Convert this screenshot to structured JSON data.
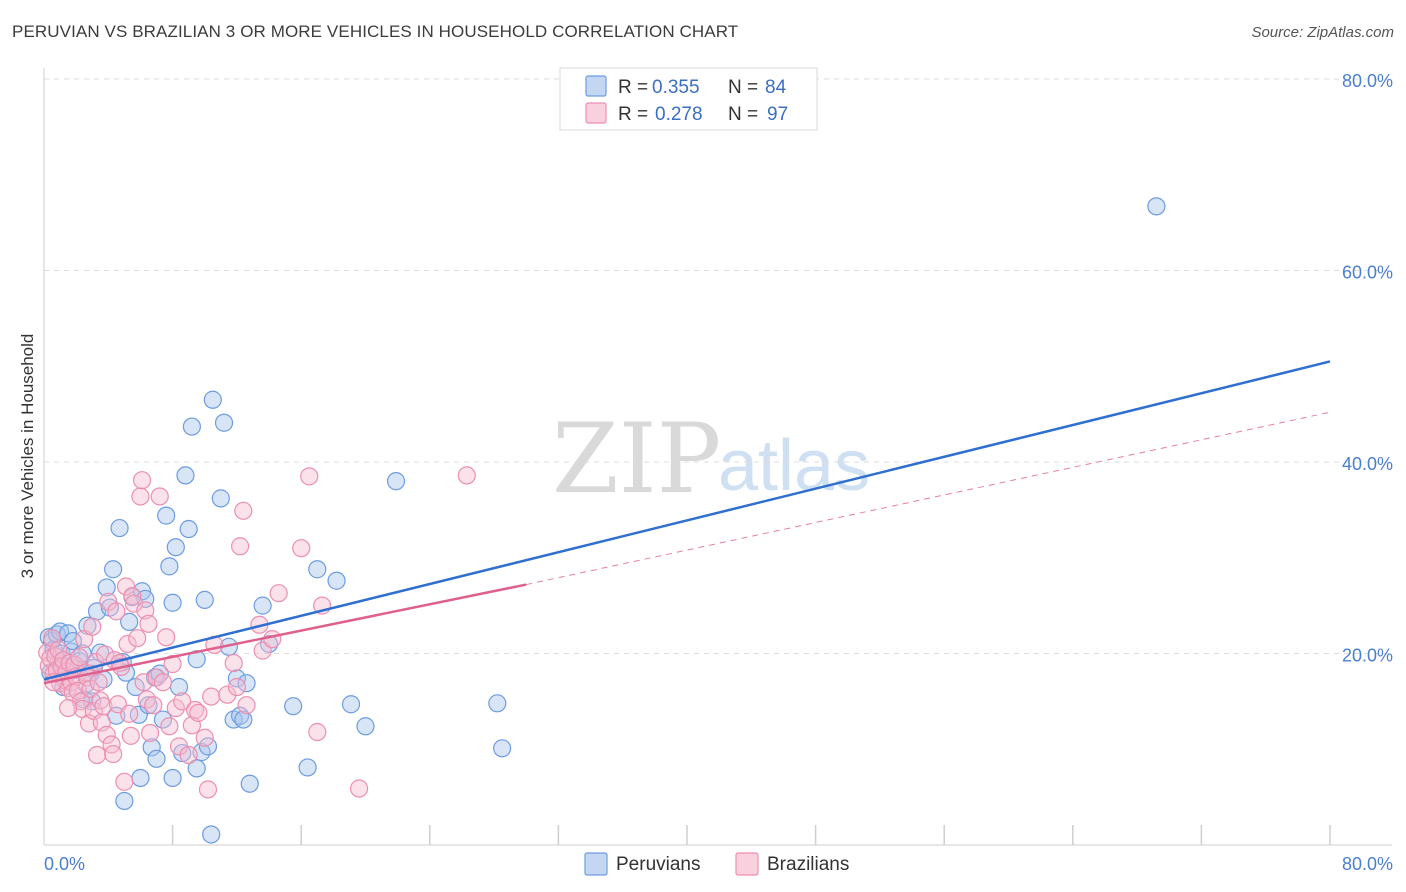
{
  "header": {
    "title": "PERUVIAN VS BRAZILIAN 3 OR MORE VEHICLES IN HOUSEHOLD CORRELATION CHART",
    "source": "Source: ZipAtlas.com"
  },
  "watermark": {
    "zip": "ZIP",
    "atlas": "atlas"
  },
  "legend": {
    "r_label": "R =",
    "n_label": "N =",
    "rows": [
      {
        "r": "0.355",
        "n": "84",
        "color": "#7ba7e0"
      },
      {
        "r": "0.278",
        "n": "97",
        "color": "#f0a3bd"
      }
    ]
  },
  "colors": {
    "peruvians_fill": "#a9c6ee",
    "peruvians_stroke": "#6d9ce0",
    "peruvians_line": "#2f6fd0",
    "brazilians_fill": "#f6bdd0",
    "brazilians_stroke": "#ec8fb0",
    "brazilians_line": "#e0608c"
  },
  "chart_data": {
    "type": "scatter",
    "title": "PERUVIAN VS BRAZILIAN 3 OR MORE VEHICLES IN HOUSEHOLD CORRELATION CHART",
    "xlabel": "",
    "ylabel": "3 or more Vehicles in Household",
    "xlim": [
      0,
      80
    ],
    "ylim": [
      0,
      80
    ],
    "x_tick_labels": [
      "0.0%",
      "80.0%"
    ],
    "y_ticks": [
      20,
      40,
      60,
      80
    ],
    "y_tick_labels": [
      "20.0%",
      "40.0%",
      "60.0%",
      "80.0%"
    ],
    "grid": true,
    "legend_position": "top-center",
    "series": [
      {
        "name": "Peruvians",
        "r": 0.355,
        "n": 84,
        "trend": {
          "x": [
            0,
            80
          ],
          "y": [
            17.3,
            50.5
          ]
        },
        "points": [
          [
            0.3,
            21.7
          ],
          [
            0.5,
            21.3
          ],
          [
            0.6,
            20.4
          ],
          [
            0.8,
            22.0
          ],
          [
            0.9,
            19.1
          ],
          [
            1.0,
            22.3
          ],
          [
            1.1,
            20.0
          ],
          [
            1.3,
            17.6
          ],
          [
            1.5,
            22.1
          ],
          [
            1.7,
            20.2
          ],
          [
            1.8,
            21.3
          ],
          [
            2.0,
            18.3
          ],
          [
            2.2,
            19.2
          ],
          [
            2.4,
            20.0
          ],
          [
            2.5,
            15.2
          ],
          [
            2.7,
            22.9
          ],
          [
            2.9,
            17.9
          ],
          [
            3.1,
            18.5
          ],
          [
            3.3,
            24.4
          ],
          [
            3.5,
            20.1
          ],
          [
            3.7,
            17.3
          ],
          [
            3.9,
            26.9
          ],
          [
            4.1,
            24.8
          ],
          [
            4.3,
            28.8
          ],
          [
            4.5,
            13.5
          ],
          [
            4.7,
            33.1
          ],
          [
            4.9,
            19.1
          ],
          [
            5.1,
            18.0
          ],
          [
            5.3,
            23.3
          ],
          [
            5.5,
            25.9
          ],
          [
            5.7,
            16.5
          ],
          [
            5.9,
            13.6
          ],
          [
            6.1,
            26.5
          ],
          [
            6.3,
            25.7
          ],
          [
            6.5,
            14.6
          ],
          [
            6.7,
            10.2
          ],
          [
            6.9,
            17.5
          ],
          [
            7.2,
            17.9
          ],
          [
            7.4,
            13.1
          ],
          [
            7.6,
            34.4
          ],
          [
            7.8,
            29.1
          ],
          [
            8.0,
            25.3
          ],
          [
            8.2,
            31.1
          ],
          [
            8.4,
            16.5
          ],
          [
            8.6,
            9.6
          ],
          [
            8.8,
            38.6
          ],
          [
            9.0,
            33.0
          ],
          [
            9.2,
            43.7
          ],
          [
            9.5,
            19.4
          ],
          [
            9.8,
            9.7
          ],
          [
            10.0,
            25.6
          ],
          [
            10.2,
            10.3
          ],
          [
            10.4,
            1.1
          ],
          [
            10.5,
            46.5
          ],
          [
            11.0,
            36.2
          ],
          [
            11.2,
            44.1
          ],
          [
            11.5,
            20.7
          ],
          [
            11.8,
            13.1
          ],
          [
            12.0,
            17.4
          ],
          [
            12.2,
            13.5
          ],
          [
            12.4,
            13.1
          ],
          [
            12.6,
            16.9
          ],
          [
            12.8,
            6.4
          ],
          [
            13.6,
            25.0
          ],
          [
            14.0,
            21.0
          ],
          [
            15.5,
            14.5
          ],
          [
            16.4,
            8.1
          ],
          [
            17.0,
            28.8
          ],
          [
            18.2,
            27.6
          ],
          [
            19.1,
            14.7
          ],
          [
            20.0,
            12.4
          ],
          [
            21.9,
            38.0
          ],
          [
            28.2,
            14.8
          ],
          [
            28.5,
            10.1
          ],
          [
            69.2,
            66.7
          ],
          [
            0.4,
            18.0
          ],
          [
            1.2,
            16.5
          ],
          [
            2.6,
            16.8
          ],
          [
            3.0,
            15.0
          ],
          [
            5.0,
            4.6
          ],
          [
            6.0,
            7.0
          ],
          [
            7.0,
            9.0
          ],
          [
            8.0,
            7.0
          ],
          [
            9.5,
            8.0
          ]
        ]
      },
      {
        "name": "Brazilians",
        "r": 0.278,
        "n": 97,
        "trend": {
          "x": [
            0,
            30
          ],
          "y": [
            16.9,
            27.2
          ]
        },
        "trend_extension": {
          "x": [
            30,
            80
          ],
          "y": [
            27.2,
            45.2
          ]
        },
        "points": [
          [
            0.2,
            20.1
          ],
          [
            0.3,
            18.7
          ],
          [
            0.4,
            19.5
          ],
          [
            0.5,
            21.6
          ],
          [
            0.6,
            17.9
          ],
          [
            0.7,
            19.7
          ],
          [
            0.8,
            18.3
          ],
          [
            0.9,
            20.4
          ],
          [
            1.0,
            16.9
          ],
          [
            1.1,
            18.6
          ],
          [
            1.2,
            19.3
          ],
          [
            1.3,
            17.2
          ],
          [
            1.4,
            18.1
          ],
          [
            1.5,
            16.4
          ],
          [
            1.6,
            19.0
          ],
          [
            1.7,
            17.0
          ],
          [
            1.8,
            15.9
          ],
          [
            1.9,
            18.8
          ],
          [
            2.0,
            17.6
          ],
          [
            2.1,
            16.1
          ],
          [
            2.2,
            19.6
          ],
          [
            2.3,
            15.0
          ],
          [
            2.4,
            14.2
          ],
          [
            2.5,
            21.5
          ],
          [
            2.6,
            18.0
          ],
          [
            2.7,
            17.5
          ],
          [
            2.8,
            12.7
          ],
          [
            2.9,
            16.3
          ],
          [
            3.0,
            22.8
          ],
          [
            3.1,
            14.0
          ],
          [
            3.2,
            19.1
          ],
          [
            3.3,
            9.4
          ],
          [
            3.4,
            17.0
          ],
          [
            3.5,
            15.1
          ],
          [
            3.6,
            12.8
          ],
          [
            3.7,
            14.5
          ],
          [
            3.8,
            19.9
          ],
          [
            3.9,
            11.5
          ],
          [
            4.0,
            25.4
          ],
          [
            4.2,
            10.5
          ],
          [
            4.3,
            9.5
          ],
          [
            4.4,
            19.3
          ],
          [
            4.5,
            24.4
          ],
          [
            4.6,
            14.7
          ],
          [
            4.7,
            19.0
          ],
          [
            4.8,
            18.6
          ],
          [
            5.0,
            6.6
          ],
          [
            5.1,
            27.0
          ],
          [
            5.2,
            21.0
          ],
          [
            5.3,
            13.7
          ],
          [
            5.4,
            11.4
          ],
          [
            5.5,
            26.0
          ],
          [
            5.6,
            25.2
          ],
          [
            5.8,
            21.6
          ],
          [
            6.0,
            36.4
          ],
          [
            6.1,
            38.1
          ],
          [
            6.2,
            17.0
          ],
          [
            6.3,
            24.5
          ],
          [
            6.4,
            15.2
          ],
          [
            6.5,
            23.1
          ],
          [
            6.6,
            11.7
          ],
          [
            6.8,
            14.6
          ],
          [
            7.0,
            17.5
          ],
          [
            7.2,
            36.4
          ],
          [
            7.4,
            17.0
          ],
          [
            7.6,
            21.7
          ],
          [
            7.8,
            12.4
          ],
          [
            8.0,
            18.9
          ],
          [
            8.2,
            14.3
          ],
          [
            8.4,
            10.3
          ],
          [
            8.6,
            15.0
          ],
          [
            9.0,
            9.4
          ],
          [
            9.2,
            12.5
          ],
          [
            9.4,
            14.1
          ],
          [
            9.6,
            13.8
          ],
          [
            10.0,
            11.2
          ],
          [
            10.2,
            5.8
          ],
          [
            10.4,
            15.5
          ],
          [
            10.6,
            20.9
          ],
          [
            11.4,
            15.7
          ],
          [
            11.8,
            19.0
          ],
          [
            12.0,
            16.5
          ],
          [
            12.2,
            31.2
          ],
          [
            12.4,
            34.9
          ],
          [
            12.6,
            14.6
          ],
          [
            13.4,
            23.0
          ],
          [
            13.6,
            20.3
          ],
          [
            14.2,
            21.5
          ],
          [
            14.6,
            26.3
          ],
          [
            16.0,
            31.0
          ],
          [
            16.5,
            38.5
          ],
          [
            17.0,
            11.8
          ],
          [
            17.3,
            25.0
          ],
          [
            19.6,
            5.9
          ],
          [
            26.3,
            38.6
          ],
          [
            0.6,
            17.0
          ],
          [
            1.5,
            14.3
          ]
        ]
      }
    ]
  },
  "bottom_legend": {
    "items": [
      "Peruvians",
      "Brazilians"
    ]
  }
}
